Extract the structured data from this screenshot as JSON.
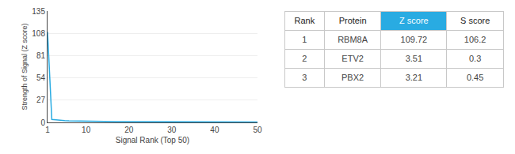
{
  "chart_data": {
    "type": "line",
    "xlabel": "Signal Rank (Top 50)",
    "ylabel": "Strength of Signal (Z score)",
    "x": [
      1,
      2,
      3,
      4,
      5,
      6,
      7,
      8,
      9,
      10,
      11,
      12,
      13,
      14,
      15,
      16,
      17,
      18,
      19,
      20,
      21,
      22,
      23,
      24,
      25,
      26,
      27,
      28,
      29,
      30,
      31,
      32,
      33,
      34,
      35,
      36,
      37,
      38,
      39,
      40,
      41,
      42,
      43,
      44,
      45,
      46,
      47,
      48,
      49,
      50
    ],
    "values": [
      109.72,
      3.51,
      3.21,
      2.5,
      2.1,
      1.9,
      1.75,
      1.6,
      1.5,
      1.4,
      1.32,
      1.25,
      1.18,
      1.12,
      1.06,
      1.01,
      0.97,
      0.93,
      0.89,
      0.86,
      0.83,
      0.8,
      0.77,
      0.74,
      0.72,
      0.7,
      0.68,
      0.66,
      0.64,
      0.62,
      0.6,
      0.58,
      0.57,
      0.55,
      0.54,
      0.52,
      0.51,
      0.5,
      0.49,
      0.48,
      0.47,
      0.46,
      0.45,
      0.44,
      0.43,
      0.42,
      0.41,
      0.4,
      0.39,
      0.38
    ],
    "color": "#29abe2",
    "xlim": [
      1,
      50
    ],
    "xticks": [
      1,
      10,
      20,
      30,
      40,
      50
    ],
    "ylim": [
      0,
      135
    ],
    "yticks": [
      0,
      27,
      54,
      81,
      108,
      135
    ],
    "grid": "y",
    "table": {
      "columns": [
        "Rank",
        "Protein",
        "Z score",
        "S score"
      ],
      "colors": [
        null,
        null,
        "#29abe2",
        null
      ],
      "rows": [
        [
          "1",
          "RBM8A",
          "109.72",
          "106.2"
        ],
        [
          "2",
          "ETV2",
          "3.51",
          "0.3"
        ],
        [
          "3",
          "PBX2",
          "3.21",
          "0.45"
        ]
      ]
    }
  }
}
